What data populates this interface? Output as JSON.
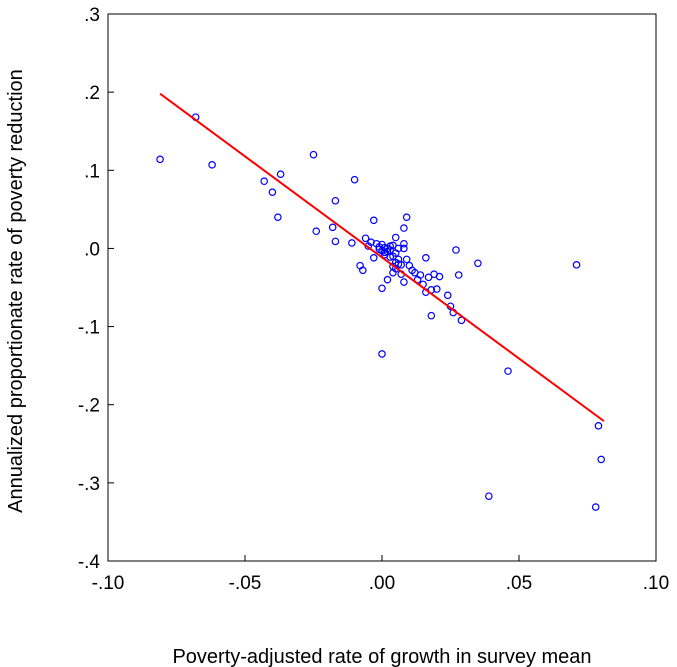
{
  "chart_data": {
    "type": "scatter",
    "title": "",
    "xlabel": "Poverty-adjusted rate of growth in survey mean",
    "ylabel": "Annualized proportionate rate of poverty reduction",
    "xlim": [
      -0.1,
      0.1
    ],
    "ylim": [
      -0.4,
      0.3
    ],
    "x_ticks": [
      -0.1,
      -0.05,
      0.0,
      0.05,
      0.1
    ],
    "x_tick_labels": [
      "-.10",
      "-.05",
      ".00",
      ".05",
      ".10"
    ],
    "y_ticks": [
      -0.4,
      -0.3,
      -0.2,
      -0.1,
      0.0,
      0.1,
      0.2,
      0.3
    ],
    "y_tick_labels": [
      "-.4",
      "-.3",
      "-.2",
      "-.1",
      ".0",
      ".1",
      ".2",
      ".3"
    ],
    "grid": false,
    "legend": "none",
    "colors": {
      "points": "#0000ff",
      "fit_line": "#ff0000",
      "axes": "#000000"
    },
    "series": [
      {
        "type": "scatter",
        "marker": "hollow-circle",
        "points": [
          [
            -0.081,
            0.114
          ],
          [
            -0.068,
            0.168
          ],
          [
            -0.062,
            0.107
          ],
          [
            -0.043,
            0.086
          ],
          [
            -0.04,
            0.072
          ],
          [
            -0.037,
            0.095
          ],
          [
            -0.038,
            0.04
          ],
          [
            -0.025,
            0.12
          ],
          [
            -0.024,
            0.022
          ],
          [
            -0.018,
            0.027
          ],
          [
            -0.017,
            0.061
          ],
          [
            -0.017,
            0.009
          ],
          [
            -0.01,
            0.088
          ],
          [
            -0.011,
            0.007
          ],
          [
            -0.008,
            -0.022
          ],
          [
            -0.007,
            -0.028
          ],
          [
            -0.006,
            0.013
          ],
          [
            -0.005,
            0.003
          ],
          [
            -0.004,
            0.008
          ],
          [
            -0.003,
            0.036
          ],
          [
            -0.003,
            -0.012
          ],
          [
            -0.002,
            0.006
          ],
          [
            -0.001,
            -0.001
          ],
          [
            -0.001,
            0.002
          ],
          [
            0.0,
            0.005
          ],
          [
            0.0,
            -0.003
          ],
          [
            0.0,
            -0.051
          ],
          [
            0.0,
            -0.135
          ],
          [
            0.001,
            -0.005
          ],
          [
            0.001,
            0.001
          ],
          [
            0.001,
            -0.008
          ],
          [
            0.002,
            0.0
          ],
          [
            0.002,
            -0.04
          ],
          [
            0.002,
            -0.004
          ],
          [
            0.003,
            -0.011
          ],
          [
            0.003,
            0.003
          ],
          [
            0.003,
            -0.002
          ],
          [
            0.004,
            -0.023
          ],
          [
            0.004,
            -0.01
          ],
          [
            0.004,
            0.004
          ],
          [
            0.004,
            -0.031
          ],
          [
            0.005,
            0.014
          ],
          [
            0.005,
            -0.006
          ],
          [
            0.005,
            -0.018
          ],
          [
            0.005,
            -0.026
          ],
          [
            0.006,
            -0.014
          ],
          [
            0.006,
            -0.02
          ],
          [
            0.006,
            0.0
          ],
          [
            0.007,
            -0.033
          ],
          [
            0.007,
            -0.021
          ],
          [
            0.008,
            0.026
          ],
          [
            0.008,
            0.006
          ],
          [
            0.008,
            0.0
          ],
          [
            0.008,
            -0.043
          ],
          [
            0.009,
            0.04
          ],
          [
            0.009,
            -0.014
          ],
          [
            0.01,
            -0.022
          ],
          [
            0.011,
            -0.028
          ],
          [
            0.012,
            -0.031
          ],
          [
            0.013,
            -0.04
          ],
          [
            0.014,
            -0.034
          ],
          [
            0.015,
            -0.046
          ],
          [
            0.016,
            -0.012
          ],
          [
            0.016,
            -0.056
          ],
          [
            0.017,
            -0.037
          ],
          [
            0.018,
            -0.053
          ],
          [
            0.018,
            -0.086
          ],
          [
            0.019,
            -0.033
          ],
          [
            0.02,
            -0.052
          ],
          [
            0.021,
            -0.036
          ],
          [
            0.024,
            -0.06
          ],
          [
            0.025,
            -0.074
          ],
          [
            0.026,
            -0.082
          ],
          [
            0.027,
            -0.002
          ],
          [
            0.028,
            -0.034
          ],
          [
            0.029,
            -0.092
          ],
          [
            0.035,
            -0.019
          ],
          [
            0.039,
            -0.317
          ],
          [
            0.046,
            -0.157
          ],
          [
            0.071,
            -0.021
          ],
          [
            0.078,
            -0.331
          ],
          [
            0.079,
            -0.227
          ],
          [
            0.08,
            -0.27
          ]
        ]
      },
      {
        "type": "line",
        "points": [
          [
            -0.081,
            0.198
          ],
          [
            0.081,
            -0.221
          ]
        ]
      }
    ]
  }
}
